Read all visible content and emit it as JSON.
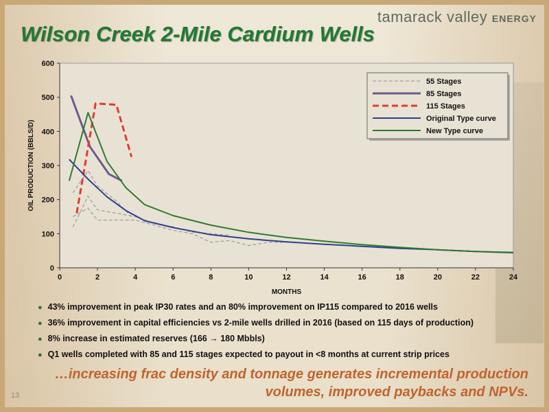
{
  "brand": {
    "name": "tamarack valley",
    "suffix": "ENERGY"
  },
  "title": "Wilson Creek 2-Mile Cardium Wells",
  "chart_data": {
    "type": "line",
    "xlabel": "MONTHS",
    "ylabel": "OIL PRODUCTION (BBLS/D)",
    "xlim": [
      0,
      24
    ],
    "ylim": [
      0,
      600
    ],
    "xticks": [
      0,
      2,
      4,
      6,
      8,
      10,
      12,
      14,
      16,
      18,
      20,
      22,
      24
    ],
    "yticks": [
      0,
      100,
      200,
      300,
      400,
      500,
      600
    ],
    "legend_position": "top-right",
    "grid": false,
    "series": [
      {
        "name": "55 Stages",
        "color": "#a0a0a0",
        "style": "dashed",
        "width": 1.3,
        "lines": [
          [
            [
              0.7,
              220
            ],
            [
              1.5,
              285
            ],
            [
              2,
              240
            ],
            [
              3,
              195
            ],
            [
              3.8,
              150
            ]
          ],
          [
            [
              0.7,
              120
            ],
            [
              1.5,
              210
            ],
            [
              2,
              170
            ],
            [
              3,
              160
            ],
            [
              4,
              150
            ],
            [
              5,
              130
            ],
            [
              6,
              120
            ],
            [
              7,
              105
            ],
            [
              8,
              100
            ],
            [
              9,
              95
            ]
          ],
          [
            [
              0.7,
              150
            ],
            [
              1.5,
              175
            ],
            [
              2,
              140
            ],
            [
              3,
              140
            ],
            [
              4,
              140
            ],
            [
              5,
              125
            ],
            [
              6,
              110
            ],
            [
              7,
              100
            ],
            [
              8,
              75
            ],
            [
              9,
              80
            ],
            [
              10,
              65
            ],
            [
              11,
              75
            ],
            [
              12,
              75
            ]
          ]
        ]
      },
      {
        "name": "85 Stages",
        "color": "#6e5a8c",
        "style": "solid",
        "width": 3,
        "lines": [
          [
            [
              0.6,
              505
            ],
            [
              1.6,
              355
            ],
            [
              2.6,
              275
            ],
            [
              3.3,
              255
            ]
          ]
        ]
      },
      {
        "name": "115 Stages",
        "color": "#e23b2e",
        "style": "dashed",
        "width": 3,
        "lines": [
          [
            [
              0.9,
              160
            ],
            [
              1.9,
              482
            ],
            [
              3,
              478
            ],
            [
              3.8,
              325
            ]
          ]
        ]
      },
      {
        "name": "Original Type curve",
        "color": "#2e3f8c",
        "style": "solid",
        "width": 2,
        "lines": [
          [
            [
              0.5,
              318
            ],
            [
              1.5,
              260
            ],
            [
              2.5,
              208
            ],
            [
              3.5,
              168
            ],
            [
              4.5,
              138
            ],
            [
              6,
              118
            ],
            [
              8,
              97
            ],
            [
              10,
              85
            ],
            [
              12,
              76
            ],
            [
              14,
              69
            ],
            [
              16,
              63
            ],
            [
              18,
              57
            ],
            [
              20,
              53
            ],
            [
              22,
              48
            ],
            [
              24,
              44
            ]
          ]
        ]
      },
      {
        "name": "New Type curve",
        "color": "#2f7a2f",
        "style": "solid",
        "width": 2,
        "lines": [
          [
            [
              0.5,
              255
            ],
            [
              1.5,
              455
            ],
            [
              2.5,
              312
            ],
            [
              3.5,
              235
            ],
            [
              4.5,
              185
            ],
            [
              6,
              153
            ],
            [
              8,
              125
            ],
            [
              10,
              104
            ],
            [
              12,
              89
            ],
            [
              14,
              78
            ],
            [
              16,
              68
            ],
            [
              18,
              60
            ],
            [
              20,
              53
            ],
            [
              22,
              48
            ],
            [
              24,
              45
            ]
          ]
        ]
      }
    ]
  },
  "bullets": [
    "43% improvement in peak IP30 rates and an 80% improvement on IP115 compared to 2016 wells",
    "36% improvement in capital efficiencies vs 2-mile wells drilled in 2016 (based on 115 days of production)",
    "8% increase in estimated reserves (166 → 180 Mbbls)",
    "Q1 wells completed with 85 and 115 stages expected to payout in <8 months at current strip prices"
  ],
  "tagline": [
    "…increasing frac density and tonnage generates incremental production",
    "volumes, improved paybacks and NPVs."
  ],
  "page_number": "13"
}
